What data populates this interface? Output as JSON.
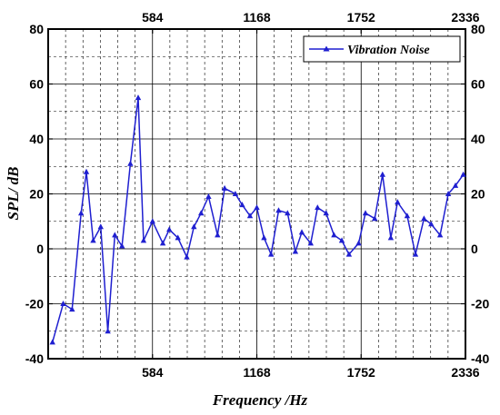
{
  "chart_data": {
    "type": "line",
    "xlabel": "Frequency /Hz",
    "ylabel": "SPL/ dB",
    "xlim": [
      0,
      2336
    ],
    "ylim": [
      -40,
      80
    ],
    "xticks": [
      584,
      1168,
      1752,
      2336
    ],
    "xtick_labels": [
      "584",
      "1168",
      "1752",
      "2336"
    ],
    "yticks": [
      -40,
      -20,
      0,
      20,
      40,
      60,
      80
    ],
    "ytick_labels": [
      "-40",
      "-20",
      "0",
      "20",
      "40",
      "60",
      "80"
    ],
    "grid": true,
    "legend_position": "top-right",
    "series": [
      {
        "name": "Vibration Noise",
        "color": "#1f1fd0",
        "marker": "triangle",
        "x": [
          24,
          84,
          134,
          184,
          214,
          252,
          294,
          334,
          373,
          413,
          460,
          504,
          534,
          584,
          642,
          678,
          726,
          776,
          816,
          856,
          898,
          948,
          988,
          1048,
          1086,
          1130,
          1168,
          1208,
          1248,
          1290,
          1340,
          1384,
          1420,
          1470,
          1508,
          1556,
          1600,
          1644,
          1684,
          1738,
          1776,
          1828,
          1872,
          1918,
          1956,
          2010,
          2056,
          2104,
          2144,
          2194,
          2240,
          2280,
          2324
        ],
        "y": [
          -34,
          -20,
          -22,
          13,
          28,
          3,
          8,
          -30,
          5,
          1,
          31,
          55,
          3,
          10,
          2,
          7,
          4,
          -3,
          8,
          13,
          19,
          5,
          22,
          20,
          16,
          12,
          15,
          4,
          -2,
          14,
          13,
          -1,
          6,
          2,
          15,
          13,
          5,
          3,
          -2,
          2,
          13,
          11,
          27,
          4,
          17,
          12,
          -2,
          11,
          9,
          5,
          20,
          23,
          27
        ]
      }
    ]
  }
}
